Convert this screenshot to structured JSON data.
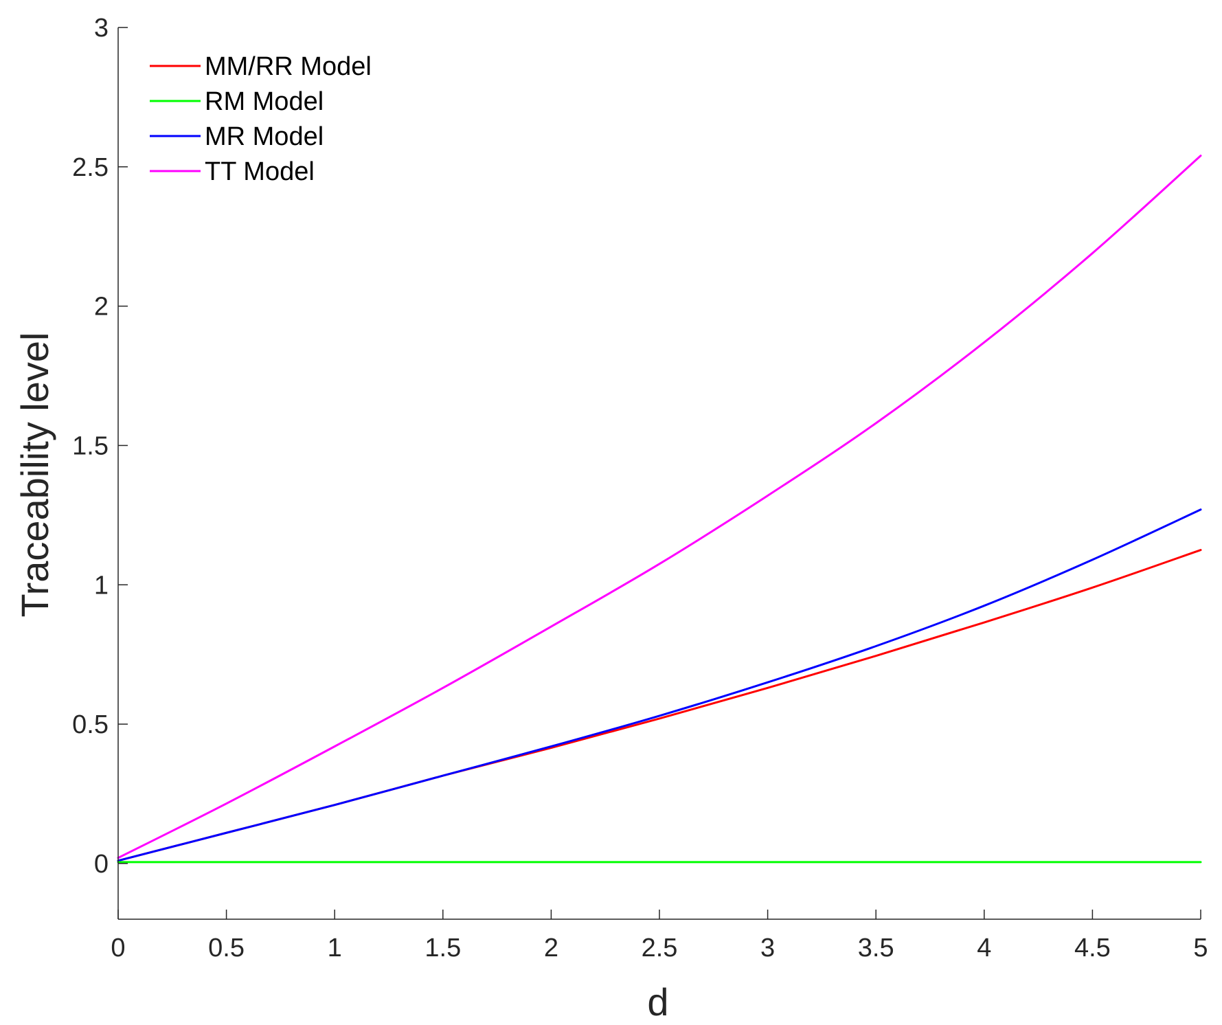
{
  "chart_data": {
    "type": "line",
    "title": "",
    "xlabel": "d",
    "ylabel": "Traceability level",
    "xlim": [
      0,
      5
    ],
    "ylim": [
      -0.2,
      3
    ],
    "xticks": [
      0,
      0.5,
      1,
      1.5,
      2,
      2.5,
      3,
      3.5,
      4,
      4.5,
      5
    ],
    "xtick_labels": [
      "0",
      "0.5",
      "1",
      "1.5",
      "2",
      "2.5",
      "3",
      "3.5",
      "4",
      "4.5",
      "5"
    ],
    "yticks": [
      0,
      0.5,
      1,
      1.5,
      2,
      2.5,
      3
    ],
    "ytick_labels": [
      "0",
      "0.5",
      "1",
      "1.5",
      "2",
      "2.5",
      "3"
    ],
    "grid": false,
    "legend_position": "top-left",
    "x": [
      0,
      0.5,
      1,
      1.5,
      2,
      2.5,
      3,
      3.5,
      4,
      4.5,
      5
    ],
    "series": [
      {
        "name": "MM/RR Model",
        "color": "#ff0000",
        "values": [
          0.01,
          0.11,
          0.21,
          0.315,
          0.415,
          0.52,
          0.63,
          0.745,
          0.865,
          0.99,
          1.125
        ]
      },
      {
        "name": "RM Model",
        "color": "#00ff00",
        "values": [
          0.005,
          0.005,
          0.005,
          0.005,
          0.005,
          0.005,
          0.005,
          0.005,
          0.005,
          0.005,
          0.005
        ]
      },
      {
        "name": "MR Model",
        "color": "#0000ff",
        "values": [
          0.01,
          0.11,
          0.21,
          0.315,
          0.42,
          0.53,
          0.65,
          0.78,
          0.925,
          1.09,
          1.27
        ]
      },
      {
        "name": "TT Model",
        "color": "#ff00ff",
        "values": [
          0.02,
          0.215,
          0.42,
          0.63,
          0.85,
          1.075,
          1.32,
          1.58,
          1.87,
          2.19,
          2.54
        ]
      }
    ]
  }
}
